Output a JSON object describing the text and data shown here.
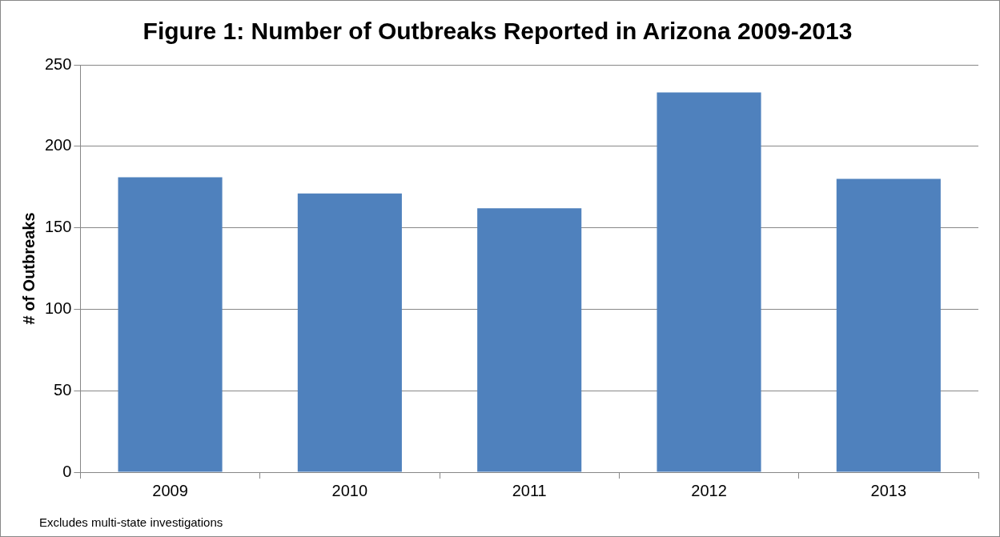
{
  "chart_data": {
    "type": "bar",
    "title": "Figure 1: Number of Outbreaks Reported in Arizona 2009-2013",
    "ylabel": "# of Outbreaks",
    "categories": [
      "2009",
      "2010",
      "2011",
      "2012",
      "2013"
    ],
    "values": [
      181,
      171,
      162,
      233,
      180
    ],
    "color": "#4f81bd",
    "ylim": [
      0,
      250
    ],
    "yticks": [
      0,
      50,
      100,
      150,
      200,
      250
    ],
    "grid": "y",
    "annotations": [
      "Excludes multi-state investigations"
    ]
  }
}
